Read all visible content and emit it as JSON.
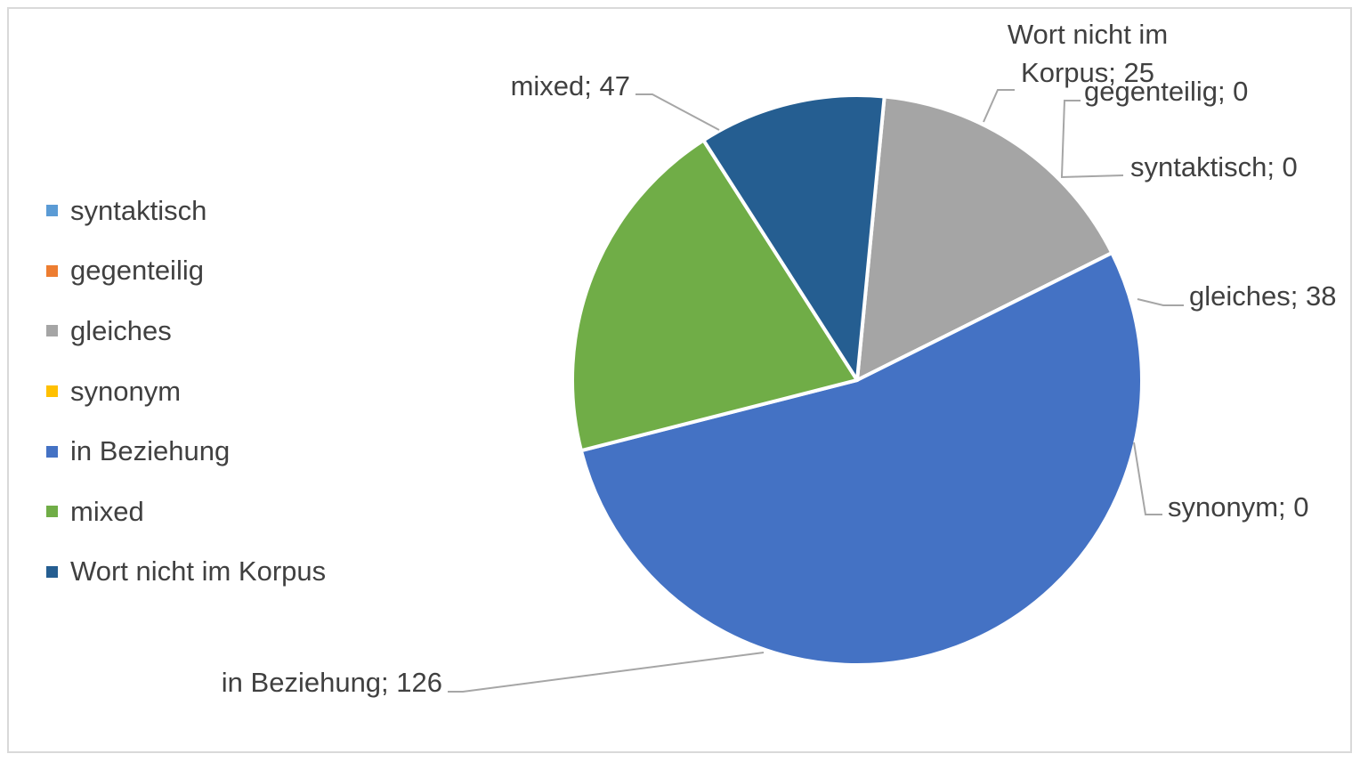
{
  "chart_data": {
    "type": "pie",
    "title": "",
    "legend_position": "left",
    "slices": [
      {
        "label": "syntaktisch",
        "value": 0,
        "color": "#5b9bd5",
        "data_label": "syntaktisch; 0"
      },
      {
        "label": "gegenteilig",
        "value": 0,
        "color": "#ed7d31",
        "data_label": "gegenteilig; 0"
      },
      {
        "label": "gleiches",
        "value": 38,
        "color": "#a5a5a5",
        "data_label": "gleiches; 38"
      },
      {
        "label": "synonym",
        "value": 0,
        "color": "#ffc000",
        "data_label": "synonym; 0"
      },
      {
        "label": "in Beziehung",
        "value": 126,
        "color": "#4472c4",
        "data_label": "in Beziehung; 126"
      },
      {
        "label": "mixed",
        "value": 47,
        "color": "#70ad47",
        "data_label": "mixed; 47"
      },
      {
        "label": "Wort nicht im Korpus",
        "value": 25,
        "color": "#255e91",
        "data_label_lines": [
          "Wort nicht im",
          "Korpus; 25"
        ]
      }
    ]
  }
}
